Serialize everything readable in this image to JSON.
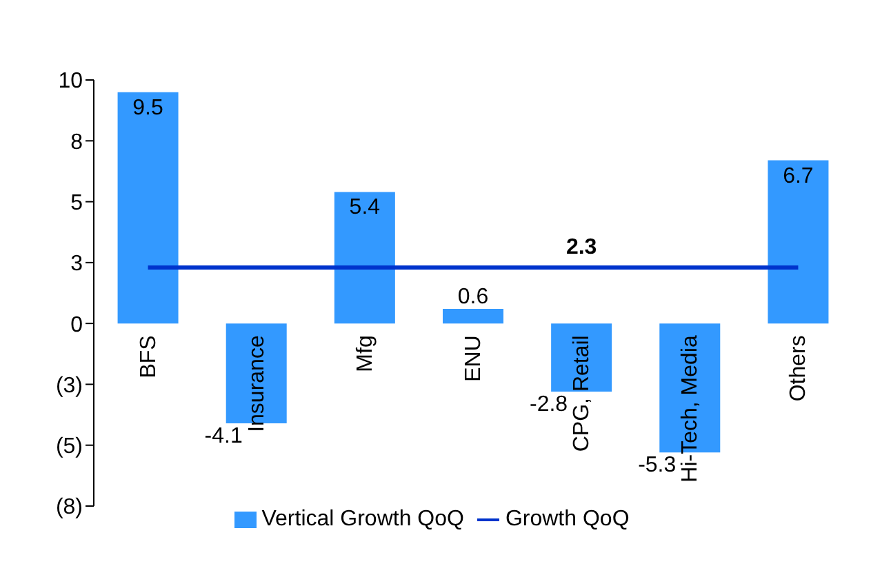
{
  "chart_data": {
    "type": "bar",
    "categories": [
      "BFS",
      "Insurance",
      "Mfg",
      "ENU",
      "CPG, Retail",
      "Hi-Tech, Media",
      "Others"
    ],
    "series": [
      {
        "name": "Vertical Growth QoQ",
        "color": "#3399ff",
        "values": [
          9.5,
          -4.1,
          5.4,
          0.6,
          -2.8,
          -5.3,
          6.7
        ],
        "value_labels": [
          "9.5",
          "-4.1",
          "5.4",
          "0.6",
          "-2.8",
          "-5.3",
          "6.7"
        ]
      },
      {
        "name": "Growth QoQ",
        "type": "line",
        "color": "#0033cc",
        "values": [
          2.3,
          2.3,
          2.3,
          2.3,
          2.3,
          2.3,
          2.3
        ],
        "value_labels": [
          null,
          null,
          null,
          null,
          "2.3",
          null,
          null
        ]
      }
    ],
    "ylim": [
      -7.5,
      10
    ],
    "yticks": [
      {
        "value": -7.5,
        "label": "(8)"
      },
      {
        "value": -5,
        "label": "(5)"
      },
      {
        "value": -2.5,
        "label": "(3)"
      },
      0,
      {
        "value": 2.5,
        "label": "3"
      },
      {
        "value": 5,
        "label": "5"
      },
      {
        "value": 7.5,
        "label": "8"
      },
      10
    ],
    "grid": false,
    "legend": "bottom"
  }
}
